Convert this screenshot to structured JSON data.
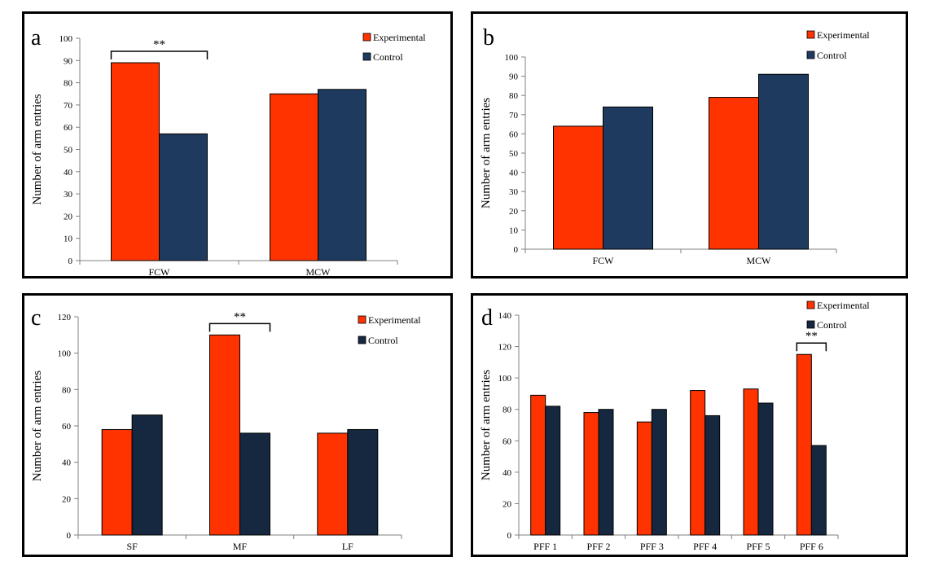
{
  "colors": {
    "experimental": "#ff3300",
    "control_ab": "#1f3a5f",
    "control_cd": "#16283f"
  },
  "chart_data": [
    {
      "panel": "a",
      "type": "bar",
      "categories": [
        "FCW",
        "MCW"
      ],
      "series": [
        {
          "name": "Experimental",
          "values": [
            89,
            75
          ]
        },
        {
          "name": "Control",
          "values": [
            57,
            77
          ]
        }
      ],
      "ylabel": "Number of arm entries",
      "ylim": [
        0,
        100
      ],
      "yticks": [
        0,
        10,
        20,
        30,
        40,
        50,
        60,
        70,
        80,
        90,
        100
      ],
      "legend": "top-right",
      "significance": [
        {
          "category": "FCW",
          "label": "**"
        }
      ]
    },
    {
      "panel": "b",
      "type": "bar",
      "categories": [
        "FCW",
        "MCW"
      ],
      "series": [
        {
          "name": "Experimental",
          "values": [
            64,
            79
          ]
        },
        {
          "name": "Control",
          "values": [
            74,
            91
          ]
        }
      ],
      "ylabel": "Number of arm entries",
      "ylim": [
        0,
        100
      ],
      "yticks": [
        0,
        10,
        20,
        30,
        40,
        50,
        60,
        70,
        80,
        90,
        100
      ],
      "legend": "top-right",
      "significance": []
    },
    {
      "panel": "c",
      "type": "bar",
      "categories": [
        "SF",
        "MF",
        "LF"
      ],
      "series": [
        {
          "name": "Experimental",
          "values": [
            58,
            110,
            56
          ]
        },
        {
          "name": "Control",
          "values": [
            66,
            56,
            58
          ]
        }
      ],
      "ylabel": "Number of arm entries",
      "ylim": [
        0,
        120
      ],
      "yticks": [
        0,
        20,
        40,
        60,
        80,
        100,
        120
      ],
      "legend": "top-right",
      "significance": [
        {
          "category": "MF",
          "label": "**"
        }
      ]
    },
    {
      "panel": "d",
      "type": "bar",
      "categories": [
        "PFF 1",
        "PFF 2",
        "PFF 3",
        "PFF 4",
        "PFF 5",
        "PFF 6"
      ],
      "series": [
        {
          "name": "Experimental",
          "values": [
            89,
            78,
            72,
            92,
            93,
            115
          ]
        },
        {
          "name": "Control",
          "values": [
            82,
            80,
            80,
            76,
            84,
            57
          ]
        }
      ],
      "ylabel": "Number of arm entries",
      "ylim": [
        0,
        140
      ],
      "yticks": [
        0,
        20,
        40,
        60,
        80,
        100,
        120,
        140
      ],
      "legend": "top-right",
      "significance": [
        {
          "category": "PFF 6",
          "label": "**"
        }
      ]
    }
  ]
}
